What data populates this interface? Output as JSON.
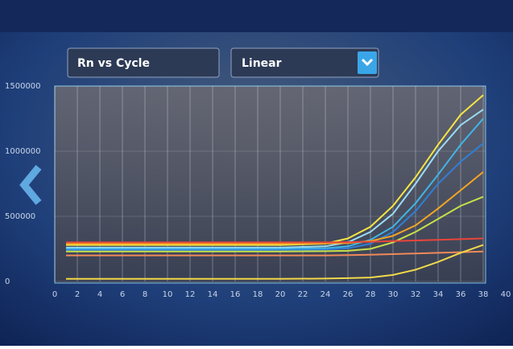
{
  "controls": {
    "plot_type": "Rn vs Cycle",
    "scale": "Linear"
  },
  "chart_data": {
    "type": "line",
    "x": [
      1,
      4,
      8,
      12,
      16,
      20,
      24,
      26,
      28,
      30,
      32,
      34,
      36,
      38
    ],
    "series": [
      {
        "color": "#f5e642",
        "values": [
          280000,
          280000,
          280000,
          280000,
          280000,
          280000,
          290000,
          330000,
          420000,
          580000,
          800000,
          1050000,
          1280000,
          1430000
        ]
      },
      {
        "color": "#9adcf5",
        "values": [
          260000,
          260000,
          260000,
          260000,
          260000,
          260000,
          270000,
          300000,
          380000,
          520000,
          750000,
          1000000,
          1200000,
          1320000
        ]
      },
      {
        "color": "#3fb6e8",
        "values": [
          250000,
          250000,
          250000,
          250000,
          250000,
          250000,
          255000,
          270000,
          320000,
          420000,
          600000,
          820000,
          1050000,
          1250000
        ]
      },
      {
        "color": "#2f7fd6",
        "values": [
          240000,
          240000,
          240000,
          240000,
          240000,
          240000,
          245000,
          255000,
          290000,
          380000,
          540000,
          750000,
          920000,
          1060000
        ]
      },
      {
        "color": "#f5a623",
        "values": [
          290000,
          290000,
          290000,
          290000,
          290000,
          290000,
          292000,
          295000,
          310000,
          350000,
          430000,
          560000,
          700000,
          840000
        ]
      },
      {
        "color": "#c8e04a",
        "values": [
          230000,
          230000,
          230000,
          230000,
          230000,
          230000,
          232000,
          235000,
          250000,
          300000,
          380000,
          480000,
          580000,
          650000
        ]
      },
      {
        "color": "#e8463a",
        "values": [
          300000,
          300000,
          300000,
          300000,
          300000,
          300000,
          300000,
          302000,
          305000,
          310000,
          315000,
          320000,
          325000,
          330000
        ]
      },
      {
        "color": "#f08a5a",
        "values": [
          200000,
          200000,
          200000,
          200000,
          200000,
          200000,
          200000,
          202000,
          205000,
          210000,
          215000,
          220000,
          225000,
          230000
        ]
      },
      {
        "color": "#f2d94a",
        "values": [
          20000,
          20000,
          20000,
          20000,
          20000,
          20000,
          22000,
          25000,
          30000,
          50000,
          90000,
          150000,
          220000,
          280000
        ]
      }
    ],
    "xlim": [
      0,
      40
    ],
    "xticks": [
      0,
      2,
      4,
      6,
      8,
      10,
      12,
      14,
      16,
      18,
      20,
      22,
      24,
      26,
      28,
      30,
      32,
      34,
      36,
      38,
      40
    ],
    "ylim": [
      0,
      1500000
    ],
    "yticks": [
      0,
      500000,
      1000000,
      1500000
    ],
    "grid": true
  }
}
